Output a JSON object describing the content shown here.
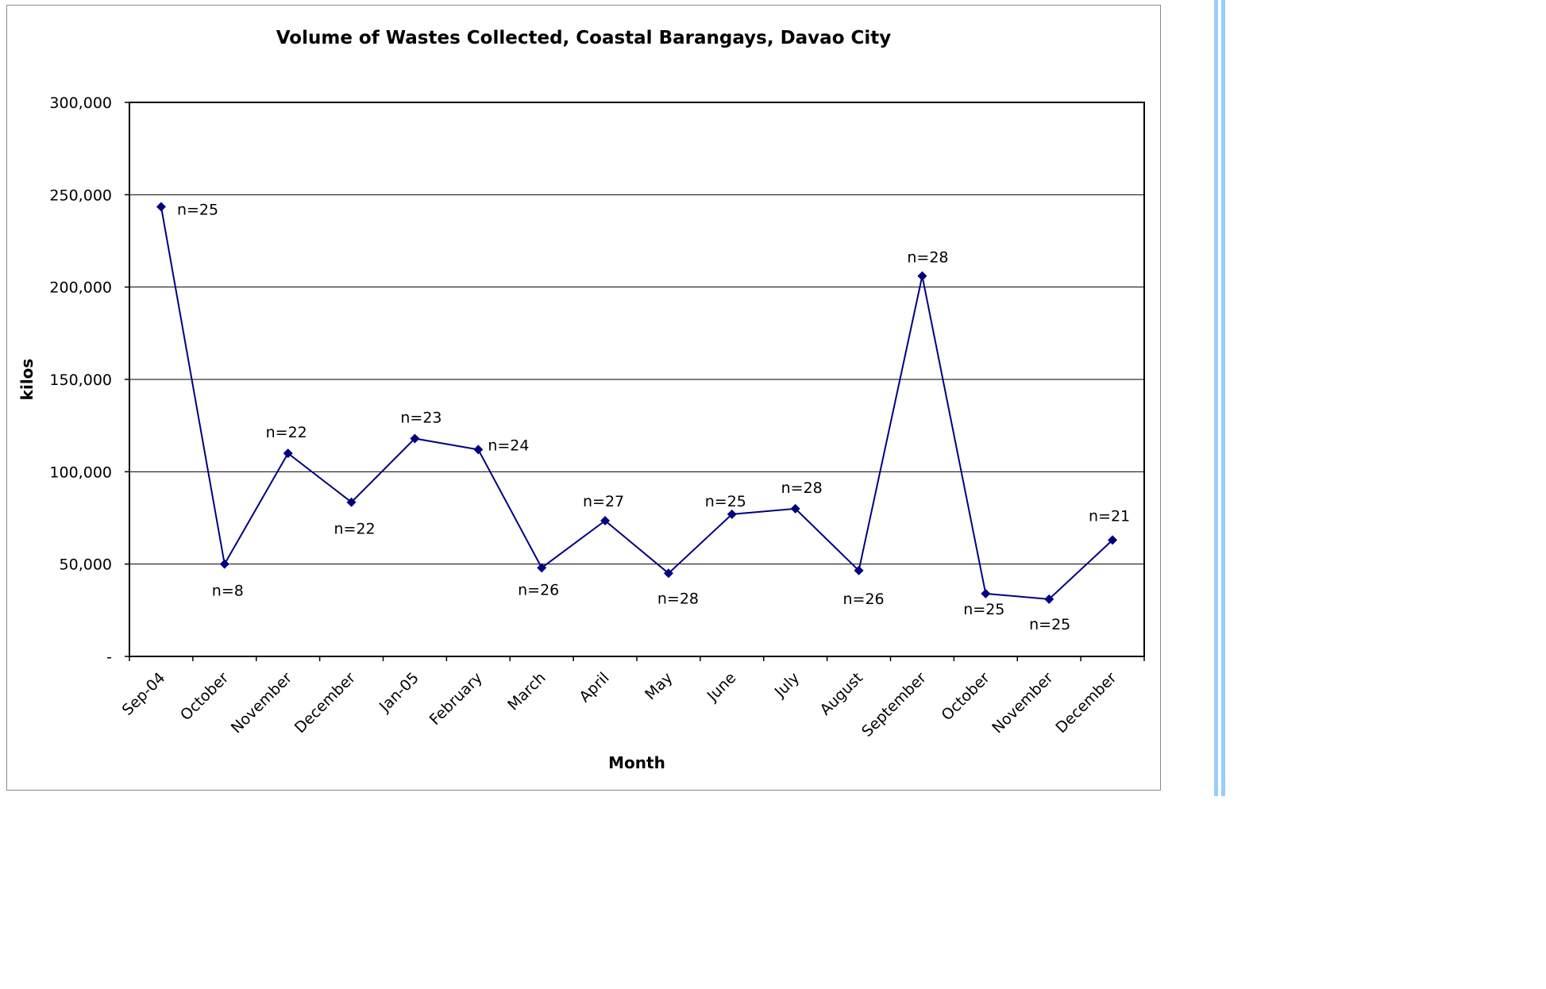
{
  "chart_data": {
    "type": "line",
    "title": "Volume of Wastes Collected, Coastal Barangays, Davao City",
    "xlabel": "Month",
    "ylabel": "kilos",
    "categories": [
      "Sep-04",
      "October",
      "November",
      "December",
      "Jan-05",
      "February",
      "March",
      "April",
      "May",
      "June",
      "July",
      "August",
      "September",
      "October",
      "November",
      "December"
    ],
    "series": [
      {
        "values": [
          243500,
          50000,
          110000,
          83500,
          118000,
          112000,
          48000,
          73500,
          45000,
          77000,
          80000,
          46500,
          206000,
          34000,
          31000,
          63000
        ],
        "labels": [
          "n=25",
          "n=8",
          "n=22",
          "n=22",
          "n=23",
          "n=24",
          "n=26",
          "n=27",
          "n=28",
          "n=25",
          "n=28",
          "n=26",
          "n=28",
          "n=25",
          "n=25",
          "n=21"
        ],
        "color": "#000080"
      }
    ],
    "ylim": [
      0,
      300000
    ],
    "yticks": [
      "-",
      "50,000",
      "100,000",
      "150,000",
      "200,000",
      "250,000",
      "300,000"
    ],
    "grid": "horizontal",
    "legend": "none"
  },
  "colors": {
    "line": "#000080",
    "stripe": "#99ccff"
  }
}
